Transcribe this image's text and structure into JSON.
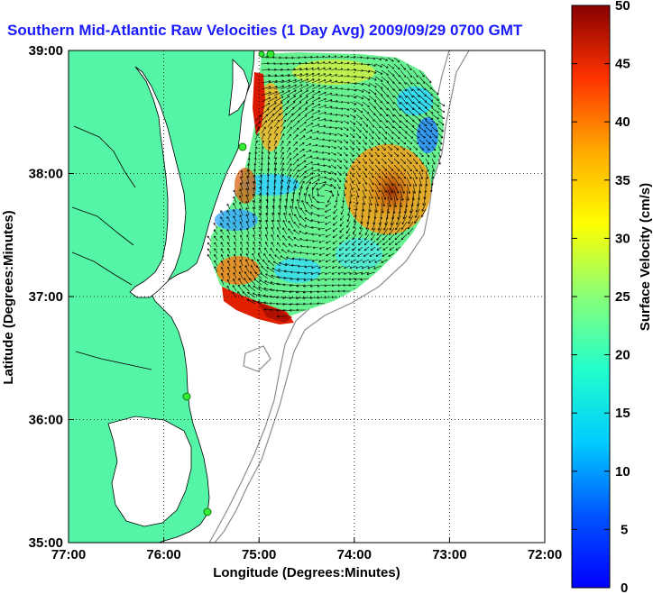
{
  "title": "Southern Mid-Atlantic Raw Velocities (1 Day Avg) 2009/09/29 0700 GMT",
  "x_axis": {
    "label": "Longitude (Degrees:Minutes)",
    "ticks": [
      "77:00",
      "76:00",
      "75:00",
      "74:00",
      "73:00",
      "72:00"
    ]
  },
  "y_axis": {
    "label": "Latitude (Degrees:Minutes)",
    "ticks": [
      "39:00",
      "38:00",
      "37:00",
      "36:00",
      "35:00"
    ]
  },
  "colorbar": {
    "label": "Surface Velocity (cm/s)",
    "ticks": [
      "50",
      "45",
      "40",
      "35",
      "30",
      "25",
      "20",
      "15",
      "10",
      "5",
      "0"
    ],
    "range": [
      0,
      50
    ],
    "colormap": "jet"
  },
  "colors": {
    "land": "#55f5a8",
    "water": "#ffffff",
    "title": "#1a1aff",
    "station": "#33ee33",
    "bathymetry": "#8c8c8c"
  },
  "map": {
    "lon_range": [
      -77,
      -72
    ],
    "lat_range": [
      35,
      39
    ],
    "grid": true
  }
}
